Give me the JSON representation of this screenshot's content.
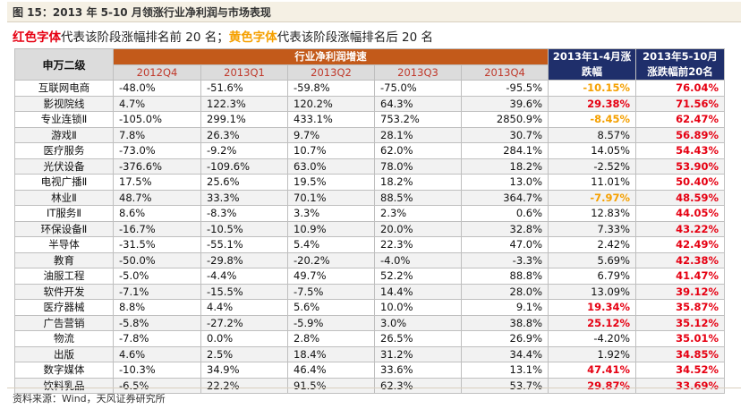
{
  "title": "图 15：2013 年 5-10 月领涨行业净利润与市场表现",
  "legend_note": {
    "red_label": "红色字体",
    "red_text": "代表该阶段涨幅排名前 20 名；",
    "yellow_label": "黄色字体",
    "yellow_text": "代表该阶段涨幅排名后 20 名"
  },
  "colors": {
    "red": "#e60012",
    "yellow": "#f5a000",
    "header_orange": "#c35a1a",
    "header_navy": "#1f2f6b"
  },
  "table": {
    "col_name_header": "申万二级",
    "group_header": "行业净利润增速",
    "quarters": [
      "2012Q4",
      "2013Q1",
      "2013Q2",
      "2013Q3",
      "2013Q4"
    ],
    "col_gain1": "2013年1-4月涨跌幅",
    "col_gain2": "2013年5-10月涨跌幅前20名",
    "rows": [
      {
        "name": "互联网电商",
        "q": [
          "-48.0%",
          "-51.6%",
          "-59.8%",
          "-75.0%",
          "-95.5%"
        ],
        "g1": "-10.15%",
        "g1c": "yellow",
        "g2": "76.04%"
      },
      {
        "name": "影视院线",
        "q": [
          "4.7%",
          "122.3%",
          "120.2%",
          "64.3%",
          "39.6%"
        ],
        "g1": "29.38%",
        "g1c": "red",
        "g2": "71.56%"
      },
      {
        "name": "专业连锁Ⅱ",
        "q": [
          "-105.0%",
          "299.1%",
          "433.1%",
          "753.2%",
          "2850.9%"
        ],
        "g1": "-8.45%",
        "g1c": "yellow",
        "g2": "62.47%"
      },
      {
        "name": "游戏Ⅱ",
        "q": [
          "7.8%",
          "26.3%",
          "9.7%",
          "28.1%",
          "30.7%"
        ],
        "g1": "8.57%",
        "g1c": "",
        "g2": "56.89%"
      },
      {
        "name": "医疗服务",
        "q": [
          "-73.0%",
          "-9.2%",
          "10.7%",
          "62.0%",
          "284.1%"
        ],
        "g1": "14.05%",
        "g1c": "",
        "g2": "54.43%"
      },
      {
        "name": "光伏设备",
        "q": [
          "-376.6%",
          "-109.6%",
          "63.0%",
          "78.0%",
          "18.2%"
        ],
        "g1": "-2.52%",
        "g1c": "",
        "g2": "53.90%"
      },
      {
        "name": "电视广播Ⅱ",
        "q": [
          "17.5%",
          "25.6%",
          "19.5%",
          "18.2%",
          "13.0%"
        ],
        "g1": "11.01%",
        "g1c": "",
        "g2": "50.40%"
      },
      {
        "name": "林业Ⅱ",
        "q": [
          "48.7%",
          "33.3%",
          "70.1%",
          "88.5%",
          "364.7%"
        ],
        "g1": "-7.97%",
        "g1c": "yellow",
        "g2": "48.59%"
      },
      {
        "name": "IT服务Ⅱ",
        "q": [
          "8.6%",
          "-8.3%",
          "3.3%",
          "2.3%",
          "0.6%"
        ],
        "g1": "12.83%",
        "g1c": "",
        "g2": "44.05%"
      },
      {
        "name": "环保设备Ⅱ",
        "q": [
          "-16.7%",
          "-10.5%",
          "10.9%",
          "20.0%",
          "32.8%"
        ],
        "g1": "7.33%",
        "g1c": "",
        "g2": "43.22%"
      },
      {
        "name": "半导体",
        "q": [
          "-31.5%",
          "-55.1%",
          "5.4%",
          "22.3%",
          "47.0%"
        ],
        "g1": "2.42%",
        "g1c": "",
        "g2": "42.49%"
      },
      {
        "name": "教育",
        "q": [
          "-50.0%",
          "-29.8%",
          "-20.2%",
          "-4.0%",
          "-3.3%"
        ],
        "g1": "5.69%",
        "g1c": "",
        "g2": "42.38%"
      },
      {
        "name": "油服工程",
        "q": [
          "-5.0%",
          "-4.4%",
          "49.7%",
          "52.2%",
          "88.8%"
        ],
        "g1": "6.79%",
        "g1c": "",
        "g2": "41.47%"
      },
      {
        "name": "软件开发",
        "q": [
          "-7.1%",
          "-15.5%",
          "-7.5%",
          "14.4%",
          "28.0%"
        ],
        "g1": "13.09%",
        "g1c": "",
        "g2": "39.12%"
      },
      {
        "name": "医疗器械",
        "q": [
          "8.8%",
          "4.4%",
          "5.6%",
          "10.0%",
          "9.1%"
        ],
        "g1": "19.34%",
        "g1c": "red",
        "g2": "35.87%"
      },
      {
        "name": "广告营销",
        "q": [
          "-5.8%",
          "-27.2%",
          "-5.9%",
          "3.0%",
          "38.8%"
        ],
        "g1": "25.12%",
        "g1c": "red",
        "g2": "35.12%"
      },
      {
        "name": "物流",
        "q": [
          "-7.8%",
          "0.0%",
          "2.8%",
          "26.5%",
          "26.9%"
        ],
        "g1": "-4.20%",
        "g1c": "",
        "g2": "35.01%"
      },
      {
        "name": "出版",
        "q": [
          "4.6%",
          "2.5%",
          "18.4%",
          "31.2%",
          "34.4%"
        ],
        "g1": "1.92%",
        "g1c": "",
        "g2": "34.85%"
      },
      {
        "name": "数字媒体",
        "q": [
          "-10.3%",
          "34.9%",
          "46.4%",
          "33.6%",
          "13.1%"
        ],
        "g1": "47.41%",
        "g1c": "red",
        "g2": "34.52%"
      },
      {
        "name": "饮料乳品",
        "q": [
          "-6.5%",
          "22.2%",
          "91.5%",
          "62.3%",
          "53.7%"
        ],
        "g1": "29.87%",
        "g1c": "red",
        "g2": "33.69%"
      }
    ]
  },
  "source": "资料来源：Wind，天风证券研究所"
}
